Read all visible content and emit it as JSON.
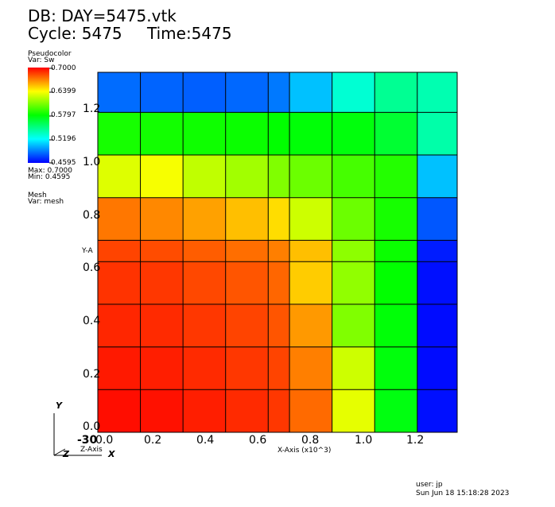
{
  "header": {
    "db_title": "DB: DAY=5475.vtk",
    "cycle": "Cycle: 5475",
    "time": "Time:5475"
  },
  "legend": {
    "plot_type": "Pseudocolor",
    "var": "Var: Sw",
    "ticks": [
      "0.7000",
      "0.6399",
      "0.5797",
      "0.5196",
      "0.4595"
    ],
    "max": "Max:  0.7000",
    "min": "Min:  0.4595",
    "mesh_type": "Mesh",
    "mesh_var": "Var: mesh"
  },
  "axes": {
    "xlabel": "X-Axis (x10^3)",
    "ylabel": "Y-A",
    "zlabel": "Z-Axis",
    "triad_y": "Y",
    "triad_z": "Z",
    "triad_x": "X",
    "z_tick": "-30",
    "x_ticks": [
      "0.0",
      "0.2",
      "0.4",
      "0.6",
      "0.8",
      "1.0",
      "1.2"
    ],
    "y_ticks": [
      "0.0",
      "0.2",
      "0.4",
      "0.6",
      "0.8",
      "1.0",
      "1.2"
    ]
  },
  "footer": {
    "user": "user: jp",
    "date": "Sun Jun 18 15:18:28 2023"
  },
  "chart_data": {
    "type": "heatmap",
    "title": "DB: DAY=5475.vtk",
    "xlabel": "X-Axis (x10^3)",
    "ylabel": "Y-A",
    "variable": "Sw",
    "vmin": 0.4595,
    "vmax": 0.7,
    "xlim": [
      0,
      1.35
    ],
    "ylim": [
      0,
      1.35
    ],
    "x_edges": [
      0,
      0.16,
      0.32,
      0.48,
      0.64,
      0.72,
      0.88,
      1.04,
      1.2,
      1.35
    ],
    "y_edges": [
      0,
      0.16,
      0.32,
      0.48,
      0.64,
      0.72,
      0.88,
      1.04,
      1.2,
      1.35
    ],
    "rows_top_to_bottom": [
      [
        0.485,
        0.483,
        0.482,
        0.484,
        0.488,
        0.505,
        0.53,
        0.545,
        0.538
      ],
      [
        0.585,
        0.584,
        0.583,
        0.582,
        0.58,
        0.578,
        0.577,
        0.568,
        0.54
      ],
      [
        0.632,
        0.638,
        0.625,
        0.618,
        0.61,
        0.605,
        0.596,
        0.588,
        0.505
      ],
      [
        0.672,
        0.668,
        0.662,
        0.655,
        0.648,
        0.628,
        0.605,
        0.585,
        0.48
      ],
      [
        0.684,
        0.682,
        0.678,
        0.674,
        0.67,
        0.655,
        0.613,
        0.582,
        0.466
      ],
      [
        0.688,
        0.687,
        0.683,
        0.68,
        0.676,
        0.652,
        0.614,
        0.58,
        0.463
      ],
      [
        0.691,
        0.69,
        0.687,
        0.684,
        0.68,
        0.664,
        0.61,
        0.578,
        0.462
      ],
      [
        0.694,
        0.693,
        0.69,
        0.687,
        0.684,
        0.67,
        0.628,
        0.577,
        0.462
      ],
      [
        0.697,
        0.696,
        0.693,
        0.69,
        0.687,
        0.675,
        0.634,
        0.576,
        0.463
      ]
    ],
    "grid": true
  }
}
